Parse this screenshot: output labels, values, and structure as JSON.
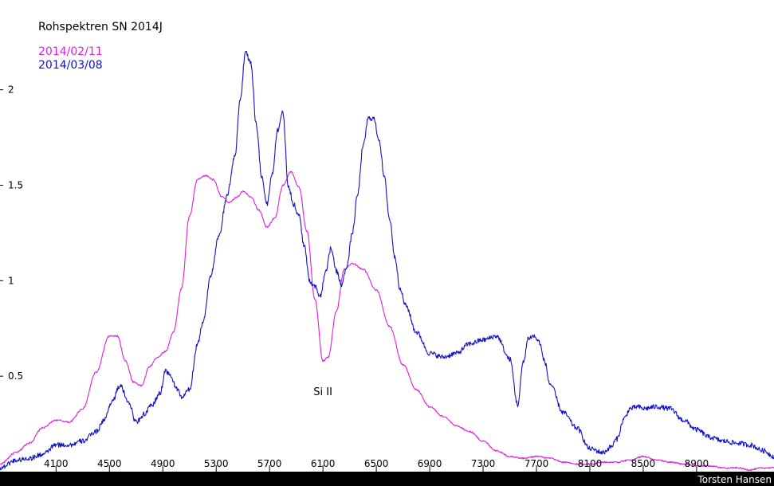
{
  "chart_data": {
    "type": "line",
    "title": "Rohspektren SN 2014J",
    "xlabel": "",
    "ylabel": "",
    "xlim": [
      3680,
      9480
    ],
    "ylim": [
      0,
      2.47
    ],
    "grid": false,
    "legend_position": "top-left",
    "x_ticks": [
      4100,
      4500,
      4900,
      5300,
      5700,
      6100,
      6500,
      6900,
      7300,
      7700,
      8100,
      8500,
      8900
    ],
    "y_ticks": [
      {
        "value": 0.5,
        "label": "0.5"
      },
      {
        "value": 1,
        "label": "1"
      },
      {
        "value": 1.5,
        "label": "1.5"
      },
      {
        "value": 2,
        "label": "2"
      }
    ],
    "annotations": [
      {
        "text": "Si II",
        "x": 6100,
        "y": 0.4
      }
    ],
    "credit": "Torsten Hansen",
    "series": [
      {
        "name": "2014/02/11",
        "color": "#e11ee1",
        "x": [
          3680,
          3800,
          3900,
          4000,
          4100,
          4200,
          4300,
          4400,
          4500,
          4560,
          4620,
          4680,
          4740,
          4800,
          4860,
          4920,
          4980,
          5040,
          5100,
          5160,
          5220,
          5280,
          5340,
          5400,
          5460,
          5500,
          5560,
          5620,
          5680,
          5740,
          5800,
          5860,
          5920,
          5980,
          6040,
          6100,
          6140,
          6200,
          6260,
          6320,
          6400,
          6500,
          6600,
          6700,
          6800,
          6900,
          7000,
          7100,
          7200,
          7300,
          7400,
          7500,
          7600,
          7700,
          7800,
          7900,
          8000,
          8100,
          8200,
          8300,
          8400,
          8500,
          8600,
          8700,
          8800,
          8900,
          9000,
          9100,
          9200,
          9300,
          9400,
          9480
        ],
        "y": [
          0.04,
          0.1,
          0.15,
          0.23,
          0.27,
          0.26,
          0.33,
          0.52,
          0.71,
          0.71,
          0.58,
          0.47,
          0.45,
          0.55,
          0.6,
          0.63,
          0.73,
          0.96,
          1.34,
          1.53,
          1.55,
          1.53,
          1.44,
          1.41,
          1.44,
          1.47,
          1.44,
          1.37,
          1.28,
          1.33,
          1.5,
          1.57,
          1.49,
          1.26,
          0.9,
          0.58,
          0.6,
          0.84,
          1.06,
          1.09,
          1.06,
          0.95,
          0.76,
          0.56,
          0.43,
          0.34,
          0.29,
          0.24,
          0.21,
          0.16,
          0.11,
          0.08,
          0.07,
          0.08,
          0.07,
          0.05,
          0.04,
          0.04,
          0.05,
          0.05,
          0.06,
          0.08,
          0.06,
          0.05,
          0.04,
          0.03,
          0.03,
          0.02,
          0.02,
          0.01,
          0.02,
          0.02
        ],
        "noise": 0.004
      },
      {
        "name": "2014/03/08",
        "color": "#1212c8",
        "x": [
          3680,
          3800,
          3900,
          4000,
          4100,
          4200,
          4300,
          4400,
          4460,
          4520,
          4580,
          4640,
          4700,
          4760,
          4820,
          4880,
          4920,
          4960,
          5000,
          5040,
          5100,
          5160,
          5200,
          5260,
          5320,
          5380,
          5440,
          5480,
          5520,
          5560,
          5600,
          5640,
          5680,
          5720,
          5760,
          5800,
          5840,
          5880,
          5920,
          5960,
          6000,
          6040,
          6080,
          6120,
          6160,
          6200,
          6240,
          6280,
          6320,
          6360,
          6400,
          6440,
          6480,
          6520,
          6560,
          6600,
          6640,
          6680,
          6720,
          6800,
          6900,
          7000,
          7100,
          7200,
          7300,
          7400,
          7500,
          7560,
          7600,
          7640,
          7680,
          7720,
          7760,
          7800,
          7900,
          8000,
          8100,
          8200,
          8260,
          8300,
          8360,
          8400,
          8460,
          8500,
          8600,
          8700,
          8800,
          8900,
          9000,
          9100,
          9200,
          9300,
          9400,
          9480
        ],
        "y": [
          0.02,
          0.06,
          0.07,
          0.09,
          0.14,
          0.14,
          0.16,
          0.21,
          0.27,
          0.37,
          0.45,
          0.37,
          0.26,
          0.3,
          0.35,
          0.41,
          0.53,
          0.5,
          0.44,
          0.39,
          0.43,
          0.67,
          0.78,
          1.03,
          1.23,
          1.44,
          1.65,
          1.95,
          2.2,
          2.14,
          1.82,
          1.55,
          1.4,
          1.56,
          1.79,
          1.88,
          1.5,
          1.4,
          1.34,
          1.18,
          1.0,
          0.97,
          0.92,
          1.05,
          1.17,
          1.05,
          0.98,
          1.08,
          1.25,
          1.45,
          1.7,
          1.85,
          1.85,
          1.74,
          1.54,
          1.32,
          1.12,
          0.95,
          0.87,
          0.73,
          0.62,
          0.6,
          0.62,
          0.67,
          0.69,
          0.71,
          0.59,
          0.35,
          0.57,
          0.7,
          0.71,
          0.68,
          0.58,
          0.46,
          0.31,
          0.23,
          0.12,
          0.1,
          0.13,
          0.17,
          0.28,
          0.33,
          0.34,
          0.33,
          0.34,
          0.33,
          0.27,
          0.22,
          0.18,
          0.16,
          0.15,
          0.14,
          0.11,
          0.08
        ],
        "noise": 0.013
      }
    ]
  }
}
